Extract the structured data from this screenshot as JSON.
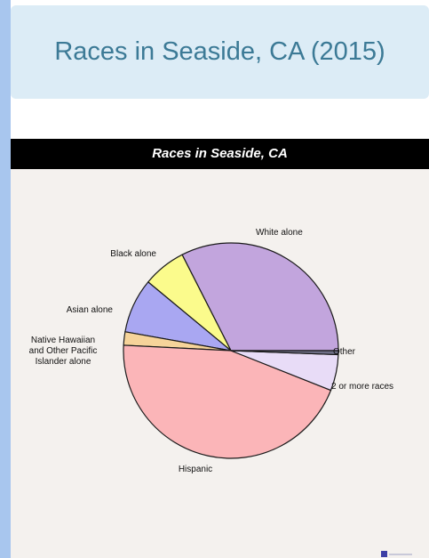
{
  "page": {
    "heading": "Races in Seaside, CA (2015)"
  },
  "colors": {
    "background": "#a8c6ee",
    "header_bg": "#dcecf6",
    "heading_text": "#3c7a96",
    "chart_bg": "#f4f1ee",
    "title_bar": "#000000"
  },
  "chart_data": {
    "type": "pie",
    "title": "Races in Seaside, CA",
    "start_angle_deg": 0,
    "direction": "counterclockwise",
    "slices": [
      {
        "label": "White alone",
        "value": 32.5,
        "color": "#c2a5dd"
      },
      {
        "label": "Black alone",
        "value": 6.5,
        "color": "#fbfb8c"
      },
      {
        "label": "Asian alone",
        "value": 8.2,
        "color": "#a9a7f2"
      },
      {
        "label": "Native Hawaiian and Other Pacific Islander alone",
        "value": 2.0,
        "color": "#f6d49a"
      },
      {
        "label": "Hispanic",
        "value": 44.8,
        "color": "#fbb5b8"
      },
      {
        "label": "2 or more races",
        "value": 5.4,
        "color": "#e8dcf7"
      },
      {
        "label": "Other",
        "value": 0.6,
        "color": "#6e6e86"
      }
    ],
    "legend": "none"
  }
}
